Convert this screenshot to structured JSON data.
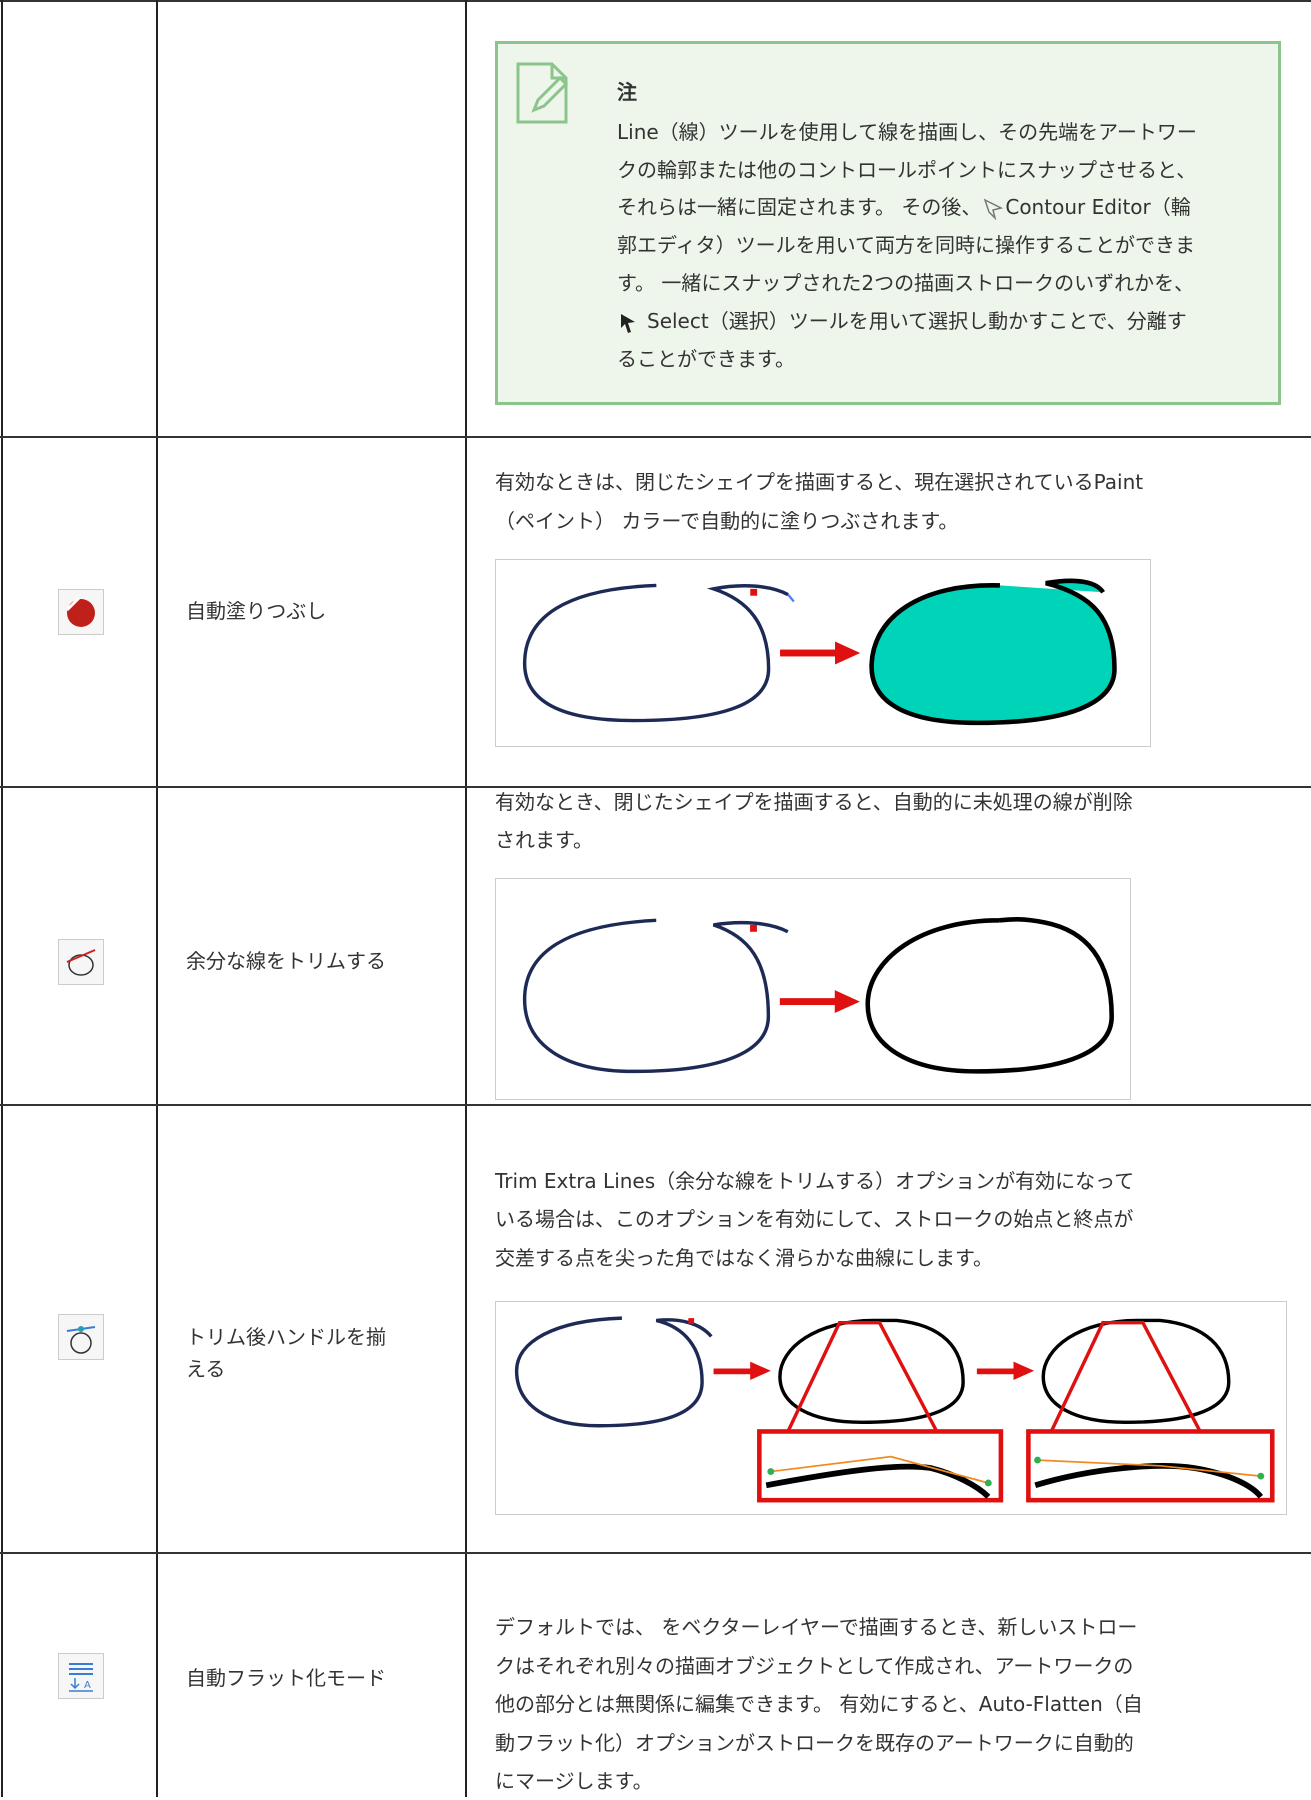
{
  "note": {
    "title": "注",
    "lines": [
      "Line（線）ツールを使用して線を描画し、その先端をアートワー",
      "クの輪郭または他のコントロールポイントにスナップさせると、",
      [
        "それらは一緒に固定されます。 その後、",
        "Contour Editor（輪"
      ],
      "郭エディタ）ツールを用いて両方を同時に操作することができま",
      "す。 一緒にスナップされた2つの描画ストロークのいずれかを、",
      "Select（選択）ツールを用いて選択し動かすことで、分離す",
      "ることができます。"
    ]
  },
  "table": {
    "rows": [
      {
        "name": [
          "自動塗りつぶし"
        ],
        "description": [
          "有効なときは、閉じたシェイプを描画すると、現在選択されているPaint",
          "（ペイント） カラーで自動的に塗りつぶされます。"
        ]
      },
      {
        "name": [
          "余分な線をトリムする"
        ],
        "description": [
          "有効なとき、閉じたシェイプを描画すると、自動的に未処理の線が削除",
          "されます。"
        ]
      },
      {
        "name": [
          "トリム後ハンドルを揃",
          "える"
        ],
        "description": [
          "Trim Extra Lines（余分な線をトリムする）オプションが有効になって",
          "いる場合は、このオプションを有効にして、ストロークの始点と終点が",
          "交差する点を尖った角ではなく滑らかな曲線にします。"
        ]
      },
      {
        "name": [
          "自動フラット化モード"
        ],
        "description": [
          "デフォルトでは、 をベクターレイヤーで描画するとき、新しいストロー",
          "クはそれぞれ別々の描画オブジェクトとして作成され、アートワークの",
          "他の部分とは無関係に編集できます。 有効にすると、Auto-Flatten（自",
          "動フラット化）オプションがストロークを既存のアートワークに自動的",
          "にマージします。"
        ]
      }
    ]
  }
}
